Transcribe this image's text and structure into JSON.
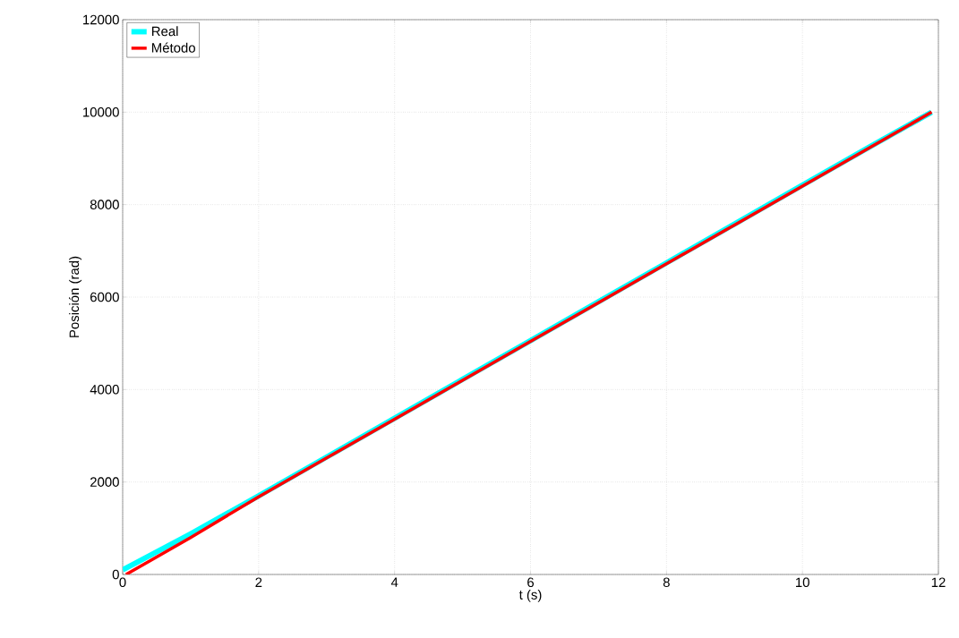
{
  "chart_data": {
    "type": "line",
    "xlabel": "t (s)",
    "ylabel": "Posición (rad)",
    "xlim": [
      0,
      12
    ],
    "ylim": [
      0,
      12000
    ],
    "xticks": [
      0,
      2,
      4,
      6,
      8,
      10,
      12
    ],
    "yticks": [
      0,
      2000,
      4000,
      6000,
      8000,
      10000,
      12000
    ],
    "grid": true,
    "legend": "top left",
    "marker": "none",
    "line_style": "solid",
    "series": [
      {
        "name": "Real",
        "color": "#00ffff",
        "x": [
          0,
          1,
          2,
          3,
          4,
          5,
          6,
          7,
          8,
          9,
          10,
          11,
          11.9
        ],
        "values": [
          100,
          880,
          1700,
          2540,
          3380,
          4220,
          5060,
          5900,
          6740,
          7580,
          8420,
          9260,
          10000
        ]
      },
      {
        "name": "Método",
        "color": "#ff0000",
        "x": [
          0.05,
          1,
          2,
          3,
          4,
          5,
          6,
          7,
          8,
          9,
          10,
          11,
          11.9
        ],
        "values": [
          0,
          800,
          1680,
          2520,
          3360,
          4200,
          5040,
          5880,
          6720,
          7560,
          8400,
          9240,
          10000
        ]
      }
    ]
  }
}
